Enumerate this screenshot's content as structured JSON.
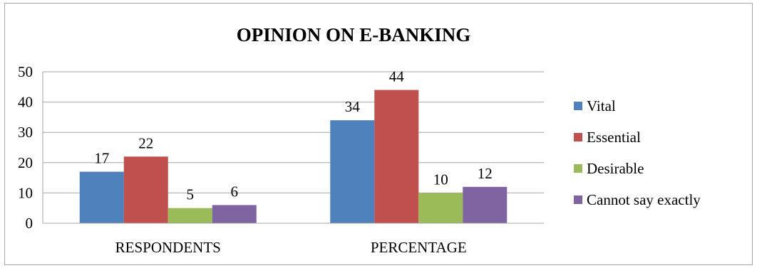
{
  "chart_data": {
    "type": "bar",
    "title": "OPINION ON E-BANKING",
    "categories": [
      "RESPONDENTS",
      "PERCENTAGE"
    ],
    "series": [
      {
        "name": "Vital",
        "values": [
          17,
          34
        ],
        "color": "#4f81bd"
      },
      {
        "name": "Essential",
        "values": [
          22,
          44
        ],
        "color": "#c0504d"
      },
      {
        "name": "Desirable",
        "values": [
          5,
          10
        ],
        "color": "#9bbb59"
      },
      {
        "name": "Cannot say exactly",
        "values": [
          6,
          12
        ],
        "color": "#8064a2"
      }
    ],
    "ylim": [
      0,
      50
    ],
    "yticks": [
      0,
      10,
      20,
      30,
      40,
      50
    ],
    "grid": true,
    "legend_position": "right",
    "data_labels": true
  }
}
